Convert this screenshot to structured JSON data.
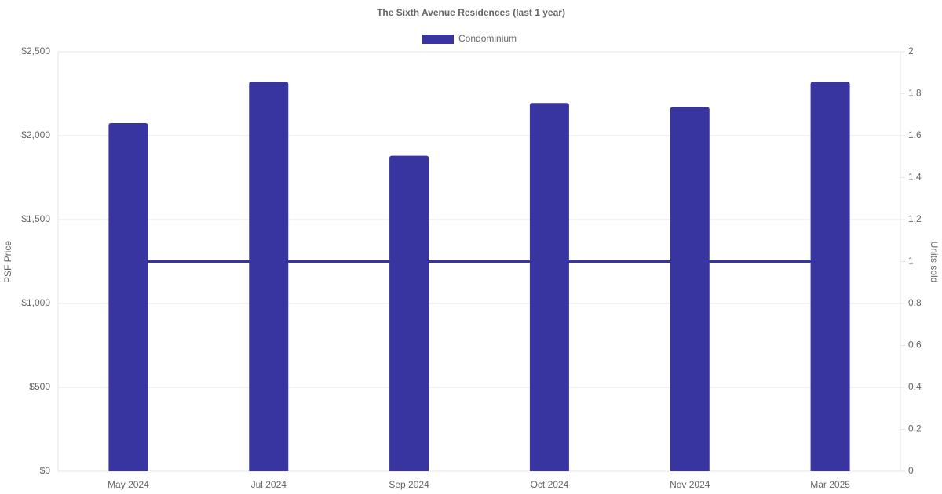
{
  "chart_data": {
    "type": "bar",
    "title": "The Sixth Avenue Residences (last 1 year)",
    "categories": [
      "May 2024",
      "Jul 2024",
      "Sep 2024",
      "Oct 2024",
      "Nov 2024",
      "Mar 2025"
    ],
    "series": [
      {
        "name": "Condominium",
        "type": "bar",
        "color": "#3834a0",
        "values": [
          2075,
          2320,
          1880,
          2195,
          2170,
          2320
        ]
      },
      {
        "type": "line",
        "color": "#3834a0",
        "axis": "y2",
        "values": [
          1,
          1,
          1,
          1,
          1,
          1
        ]
      }
    ],
    "ylabel": "PSF Price",
    "y2label": "Units sold",
    "ylim": [
      0,
      2500
    ],
    "yticks": [
      {
        "value": 0,
        "label": "$0"
      },
      {
        "value": 500,
        "label": "$500"
      },
      {
        "value": 1000,
        "label": "$1,000"
      },
      {
        "value": 1500,
        "label": "$1,500"
      },
      {
        "value": 2000,
        "label": "$2,000"
      },
      {
        "value": 2500,
        "label": "$2,500"
      }
    ],
    "y2lim": [
      0,
      2
    ],
    "y2ticks": [
      0,
      0.2,
      0.4,
      0.6,
      0.8,
      1,
      1.2,
      1.4,
      1.6,
      1.8,
      2
    ],
    "grid": true,
    "legend": "top"
  }
}
